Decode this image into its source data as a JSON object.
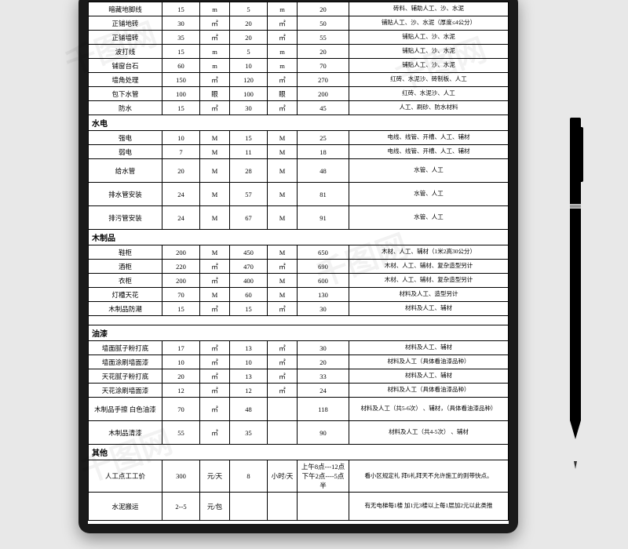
{
  "watermark": "千图网",
  "sections": {
    "s1_rows": [
      {
        "n": "暗藏地脚线",
        "a": "15",
        "u1": "m",
        "b": "5",
        "u2": "m",
        "c": "20",
        "note": "砖料、辅助人工、沙、水泥"
      },
      {
        "n": "正铺地砖",
        "a": "30",
        "u1": "㎡",
        "b": "20",
        "u2": "㎡",
        "c": "50",
        "note": "铺贴人工、沙、水泥（厚度≤4公分）"
      },
      {
        "n": "正铺墙砖",
        "a": "35",
        "u1": "㎡",
        "b": "20",
        "u2": "㎡",
        "c": "55",
        "note": "铺贴人工、沙、水泥"
      },
      {
        "n": "波打线",
        "a": "15",
        "u1": "m",
        "b": "5",
        "u2": "m",
        "c": "20",
        "note": "铺贴人工、沙、水泥"
      },
      {
        "n": "铺窗台石",
        "a": "60",
        "u1": "m",
        "b": "10",
        "u2": "m",
        "c": "70",
        "note": "铺贴人工、沙、水泥"
      },
      {
        "n": "墙角处理",
        "a": "150",
        "u1": "㎡",
        "b": "120",
        "u2": "㎡",
        "c": "270",
        "note": "红砖、水泥沙、砖制板、人工"
      },
      {
        "n": "包下水管",
        "a": "100",
        "u1": "眼",
        "b": "100",
        "u2": "眼",
        "c": "200",
        "note": "红砖、水泥沙、人工"
      },
      {
        "n": "防水",
        "a": "15",
        "u1": "㎡",
        "b": "30",
        "u2": "㎡",
        "c": "45",
        "note": "人工、刷砂、防水材料"
      }
    ],
    "s2_title": "水电",
    "s2_rows": [
      {
        "n": "强电",
        "a": "10",
        "u1": "M",
        "b": "15",
        "u2": "M",
        "c": "25",
        "note": "电线、线管、开槽、人工、辅材"
      },
      {
        "n": "弱电",
        "a": "7",
        "u1": "M",
        "b": "11",
        "u2": "M",
        "c": "18",
        "note": "电线、线管、开槽、人工、辅材"
      },
      {
        "n": "给水管",
        "a": "20",
        "u1": "M",
        "b": "28",
        "u2": "M",
        "c": "48",
        "note": "水管、人工",
        "tall": true
      },
      {
        "n": "排水管安装",
        "a": "24",
        "u1": "M",
        "b": "57",
        "u2": "M",
        "c": "81",
        "note": "水管、人工",
        "tall": true
      },
      {
        "n": "排污管安装",
        "a": "24",
        "u1": "M",
        "b": "67",
        "u2": "M",
        "c": "91",
        "note": "水管、人工",
        "tall": true
      }
    ],
    "s3_title": "木制品",
    "s3_rows": [
      {
        "n": "鞋柜",
        "a": "200",
        "u1": "M",
        "b": "450",
        "u2": "M",
        "c": "650",
        "note": "木材、人工、辅材（1米2高30公分）"
      },
      {
        "n": "酒柜",
        "a": "220",
        "u1": "㎡",
        "b": "470",
        "u2": "㎡",
        "c": "690",
        "note": "木材、人工、辅材、复杂造型另计"
      },
      {
        "n": "衣柜",
        "a": "200",
        "u1": "㎡",
        "b": "400",
        "u2": "M",
        "c": "600",
        "note": "木材、人工、辅材、复杂造型另计"
      },
      {
        "n": "灯槽天花",
        "a": "70",
        "u1": "M",
        "b": "60",
        "u2": "M",
        "c": "130",
        "note": "材料及人工、造型另计"
      },
      {
        "n": "木制品防潮",
        "a": "15",
        "u1": "㎡",
        "b": "15",
        "u2": "㎡",
        "c": "30",
        "note": "材料及人工、辅材"
      }
    ],
    "s4_title": "油漆",
    "s4_rows": [
      {
        "n": "墙面腻子粉打底",
        "a": "17",
        "u1": "㎡",
        "b": "13",
        "u2": "㎡",
        "c": "30",
        "note": "材料及人工、辅材"
      },
      {
        "n": "墙面涂刷墙面漆",
        "a": "10",
        "u1": "㎡",
        "b": "10",
        "u2": "㎡",
        "c": "20",
        "note": "材料及人工（具体看油漆品种）"
      },
      {
        "n": "天花腻子粉打底",
        "a": "20",
        "u1": "㎡",
        "b": "13",
        "u2": "㎡",
        "c": "33",
        "note": "材料及人工、辅材"
      },
      {
        "n": "天花涂刷墙面漆",
        "a": "12",
        "u1": "㎡",
        "b": "12",
        "u2": "㎡",
        "c": "24",
        "note": "材料及人工（具体看油漆品种）"
      },
      {
        "n": "木制品手擦\n白色油漆",
        "a": "70",
        "u1": "㎡",
        "b": "48",
        "u2": "",
        "c": "118",
        "note": "材料及人工（共5-6次）\n、辅材，（具体看油漆品种）",
        "tall": true
      },
      {
        "n": "木制品清漆",
        "a": "55",
        "u1": "㎡",
        "b": "35",
        "u2": "",
        "c": "90",
        "note": "材料及人工（共4-5次）\n、辅材",
        "tall": true
      }
    ],
    "s5_title": "其他",
    "s5_rows": [
      {
        "n": "人工点工工价",
        "a": "300",
        "u1": "元/天",
        "b": "8",
        "u2": "小时/天",
        "c": "上午8点---12点下午2点----5点半",
        "note": "看小区规定礼\n拜6礼拜天不允许施工的则带快点。",
        "taller": true
      },
      {
        "n": "水泥搬运",
        "a": "2--5",
        "u1": "元/包",
        "b": "",
        "u2": "",
        "c": "",
        "note": "有无电梯每1楼\n加1元3楼以上每1层加2元以此类推",
        "taller": true
      }
    ]
  }
}
